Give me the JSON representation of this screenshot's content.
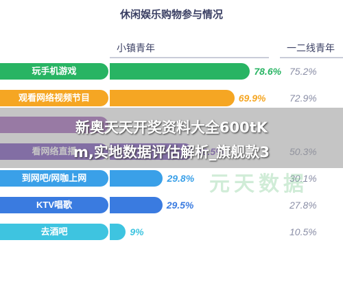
{
  "chart_data": {
    "type": "bar",
    "title": "休闲娱乐购物参与情况",
    "series": [
      {
        "name": "小镇青年",
        "values": [
          78.6,
          69.9,
          null,
          46.5,
          29.8,
          29.5,
          9
        ]
      },
      {
        "name": "一二线青年",
        "values": [
          75.2,
          72.9,
          null,
          50.3,
          30.1,
          27.8,
          10.5
        ]
      }
    ],
    "categories": [
      "玩手机游戏",
      "观看网络视频节目",
      "",
      "看网络直播",
      "到网吧/网咖上网",
      "KTV唱歌",
      "去酒吧"
    ],
    "value_labels_1": [
      "78.6%",
      "69.9%",
      "",
      "46.5%",
      "29.8%",
      "29.5%",
      "9%"
    ],
    "value_labels_2": [
      "75.2%",
      "72.9%",
      "",
      "50.3%",
      "30.1%",
      "27.8%",
      "10.5%"
    ],
    "xlim": [
      0,
      100
    ],
    "colors": [
      "#28b463",
      "#f5a623",
      "#9b59b6",
      "#6c3fb5",
      "#3aa0e8",
      "#3a7be0",
      "#3ec4e0"
    ]
  },
  "overlay_caption": {
    "line1": "新奥天天开奖资料大全600tK",
    "line2": "m,实地数据评估解析_旗舰款3"
  }
}
